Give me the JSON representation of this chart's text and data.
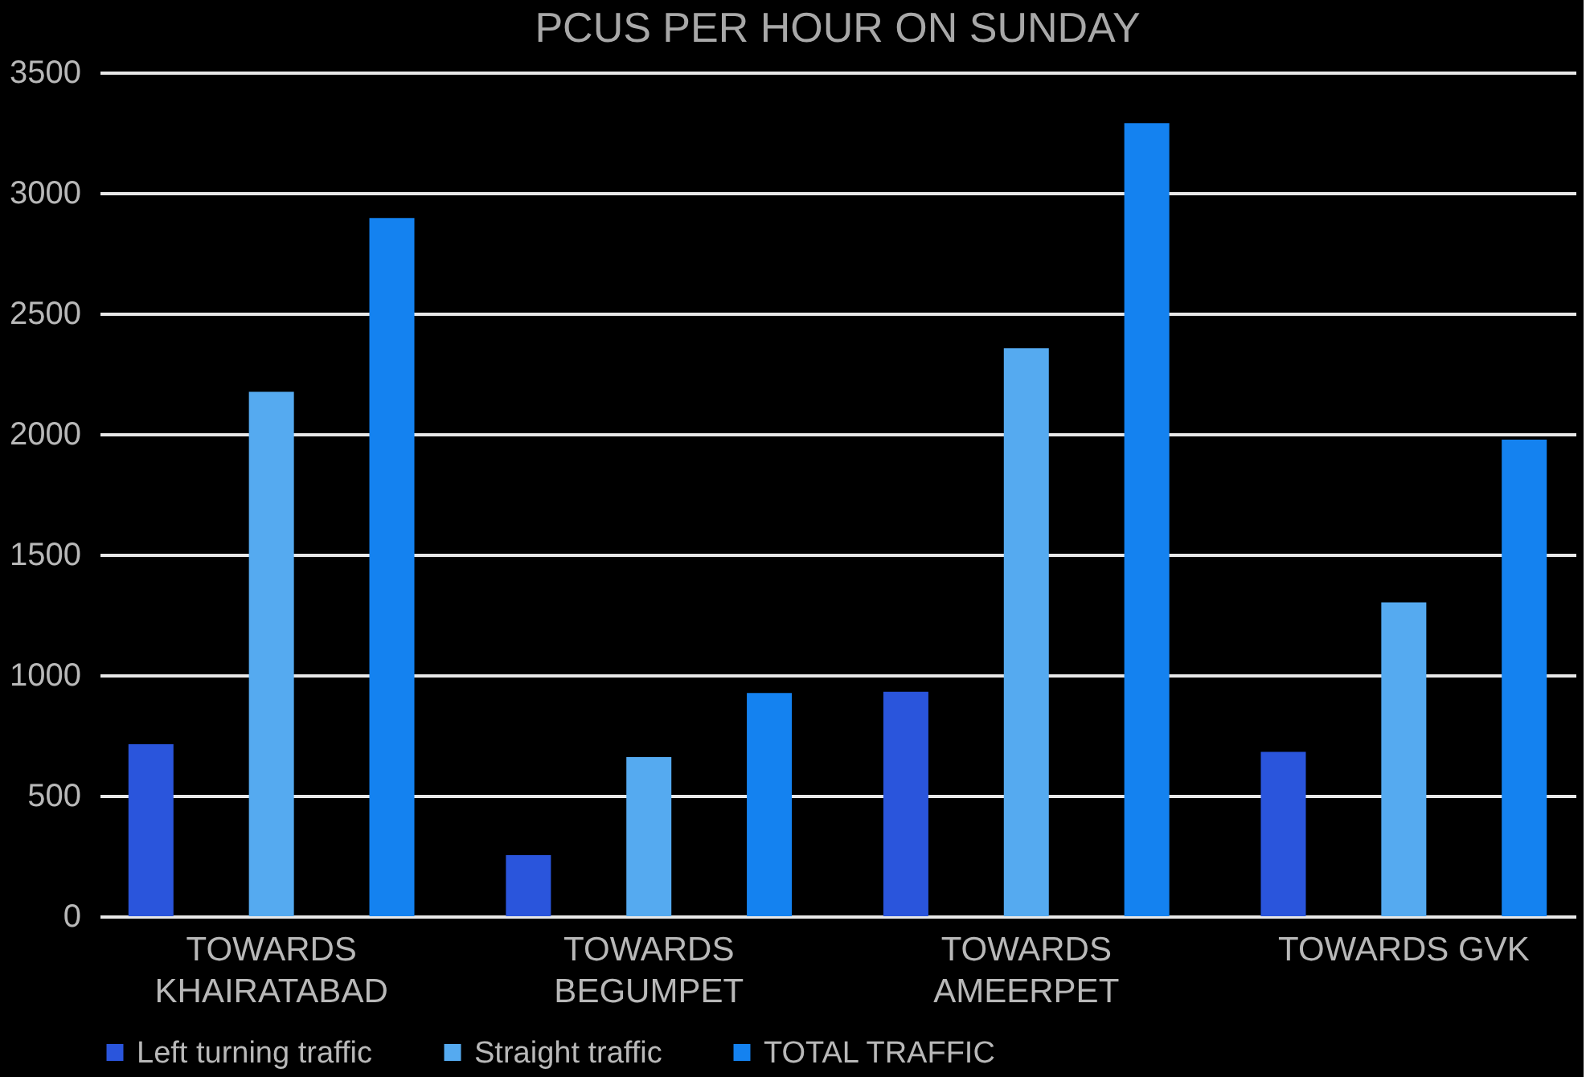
{
  "chart_data": {
    "type": "bar",
    "title": "PCUS PER HOUR ON SUNDAY",
    "categories": [
      "TOWARDS\nKHAIRATABAD",
      "TOWARDS\nBEGUMPET",
      "TOWARDS\nAMEERPET",
      "TOWARDS GVK"
    ],
    "series": [
      {
        "name": "Left turning traffic",
        "color": "#2a55dc",
        "values": [
          713,
          253,
          931,
          682
        ]
      },
      {
        "name": "Straight traffic",
        "color": "#55aaf0",
        "values": [
          2175,
          660,
          2356,
          1302
        ]
      },
      {
        "name": "TOTAL TRAFFIC",
        "color": "#1482f0",
        "values": [
          2896,
          926,
          3289,
          1977
        ]
      }
    ],
    "ylim": [
      0,
      3500
    ],
    "yticks": [
      0,
      500,
      1000,
      1500,
      2000,
      2500,
      3000,
      3500
    ],
    "grid": "y",
    "legend": "bottom"
  }
}
